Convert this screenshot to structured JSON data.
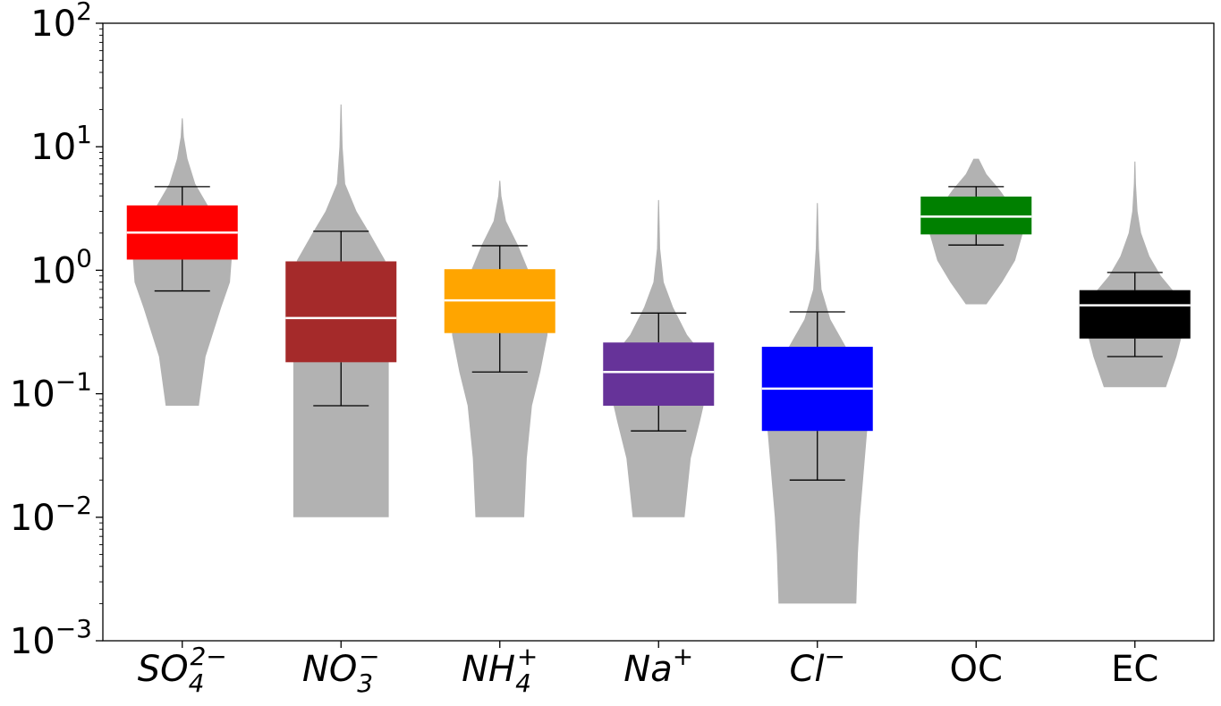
{
  "chart_data": {
    "type": "violin+box",
    "title": "",
    "xlabel": "",
    "ylabel": "",
    "yscale": "log",
    "ylim": [
      0.001,
      100
    ],
    "y_tick_labels": [
      {
        "value": 0.001,
        "base": "10",
        "exp": "−3"
      },
      {
        "value": 0.01,
        "base": "10",
        "exp": "−2"
      },
      {
        "value": 0.1,
        "base": "10",
        "exp": "−1"
      },
      {
        "value": 1,
        "base": "10",
        "exp": "0"
      },
      {
        "value": 10,
        "base": "10",
        "exp": "1"
      },
      {
        "value": 100,
        "base": "10",
        "exp": "2"
      }
    ],
    "grid": false,
    "categories": [
      {
        "label_main": "SO",
        "label_sub": "4",
        "label_sup": "2−",
        "italic": true,
        "color": "#ff0000",
        "box": {
          "whislo": 0.68,
          "q1": 1.22,
          "median": 2.02,
          "q3": 3.35,
          "whishi": 4.75
        },
        "violin": {
          "min": 0.08,
          "max": 17,
          "profile": [
            [
              0.08,
              0.32
            ],
            [
              0.2,
              0.45
            ],
            [
              0.5,
              0.75
            ],
            [
              0.8,
              0.92
            ],
            [
              1.2,
              0.95
            ],
            [
              2,
              0.9
            ],
            [
              3.3,
              0.5
            ],
            [
              5,
              0.25
            ],
            [
              8,
              0.1
            ],
            [
              12,
              0.03
            ],
            [
              17,
              0.01
            ]
          ]
        }
      },
      {
        "label_main": "NO",
        "label_sub": "3",
        "label_sup": "−",
        "italic": true,
        "color": "#a52a2a",
        "box": {
          "whislo": 0.08,
          "q1": 0.18,
          "median": 0.41,
          "q3": 1.18,
          "whishi": 2.07
        },
        "violin": {
          "min": 0.01,
          "max": 22,
          "profile": [
            [
              0.01,
              0.92
            ],
            [
              0.03,
              0.92
            ],
            [
              0.1,
              0.92
            ],
            [
              0.3,
              0.92
            ],
            [
              0.6,
              0.92
            ],
            [
              1.2,
              0.85
            ],
            [
              2,
              0.55
            ],
            [
              3,
              0.3
            ],
            [
              5,
              0.08
            ],
            [
              10,
              0.03
            ],
            [
              22,
              0.01
            ]
          ]
        }
      },
      {
        "label_main": "NH",
        "label_sub": "4",
        "label_sup": "+",
        "italic": true,
        "color": "#ffa500",
        "box": {
          "whislo": 0.15,
          "q1": 0.31,
          "median": 0.57,
          "q3": 1.02,
          "whishi": 1.58
        },
        "violin": {
          "min": 0.01,
          "max": 5.3,
          "profile": [
            [
              0.01,
              0.47
            ],
            [
              0.03,
              0.52
            ],
            [
              0.08,
              0.62
            ],
            [
              0.15,
              0.78
            ],
            [
              0.3,
              0.92
            ],
            [
              0.6,
              0.9
            ],
            [
              1,
              0.55
            ],
            [
              1.6,
              0.35
            ],
            [
              2.5,
              0.12
            ],
            [
              4,
              0.03
            ],
            [
              5.3,
              0.01
            ]
          ]
        }
      },
      {
        "label_main": "Na",
        "label_sub": "",
        "label_sup": "+",
        "italic": true,
        "color": "#663399",
        "box": {
          "whislo": 0.05,
          "q1": 0.08,
          "median": 0.15,
          "q3": 0.26,
          "whishi": 0.45
        },
        "violin": {
          "min": 0.01,
          "max": 3.7,
          "profile": [
            [
              0.01,
              0.5
            ],
            [
              0.03,
              0.62
            ],
            [
              0.06,
              0.8
            ],
            [
              0.1,
              0.92
            ],
            [
              0.2,
              0.88
            ],
            [
              0.3,
              0.55
            ],
            [
              0.5,
              0.28
            ],
            [
              0.8,
              0.1
            ],
            [
              1.5,
              0.03
            ],
            [
              3.7,
              0.01
            ]
          ]
        }
      },
      {
        "label_main": "Cl",
        "label_sub": "",
        "label_sup": "−",
        "italic": true,
        "color": "#0000ff",
        "box": {
          "whislo": 0.02,
          "q1": 0.05,
          "median": 0.11,
          "q3": 0.24,
          "whishi": 0.46
        },
        "violin": {
          "min": 0.002,
          "max": 3.5,
          "profile": [
            [
              0.002,
              0.75
            ],
            [
              0.005,
              0.78
            ],
            [
              0.01,
              0.82
            ],
            [
              0.02,
              0.88
            ],
            [
              0.05,
              0.96
            ],
            [
              0.1,
              0.9
            ],
            [
              0.24,
              0.55
            ],
            [
              0.4,
              0.25
            ],
            [
              0.7,
              0.08
            ],
            [
              1.5,
              0.03
            ],
            [
              3.5,
              0.01
            ]
          ]
        }
      },
      {
        "label_main": "OC",
        "label_sub": "",
        "label_sup": "",
        "italic": false,
        "color": "#008000",
        "box": {
          "whislo": 1.6,
          "q1": 1.95,
          "median": 2.72,
          "q3": 3.95,
          "whishi": 4.75
        },
        "violin": {
          "min": 0.53,
          "max": 8,
          "profile": [
            [
              0.53,
              0.2
            ],
            [
              0.8,
              0.5
            ],
            [
              1.2,
              0.75
            ],
            [
              2,
              0.9
            ],
            [
              3,
              0.75
            ],
            [
              4.5,
              0.45
            ],
            [
              6,
              0.2
            ],
            [
              8,
              0.05
            ]
          ]
        }
      },
      {
        "label_main": "EC",
        "label_sub": "",
        "label_sup": "",
        "italic": false,
        "color": "#000000",
        "box": {
          "whislo": 0.2,
          "q1": 0.28,
          "median": 0.52,
          "q3": 0.69,
          "whishi": 0.96
        },
        "violin": {
          "min": 0.113,
          "max": 7.6,
          "profile": [
            [
              0.113,
              0.6
            ],
            [
              0.2,
              0.8
            ],
            [
              0.35,
              0.95
            ],
            [
              0.6,
              0.85
            ],
            [
              0.9,
              0.5
            ],
            [
              1.3,
              0.28
            ],
            [
              2,
              0.12
            ],
            [
              3,
              0.05
            ],
            [
              5,
              0.02
            ],
            [
              7.6,
              0.01
            ]
          ]
        }
      }
    ]
  }
}
